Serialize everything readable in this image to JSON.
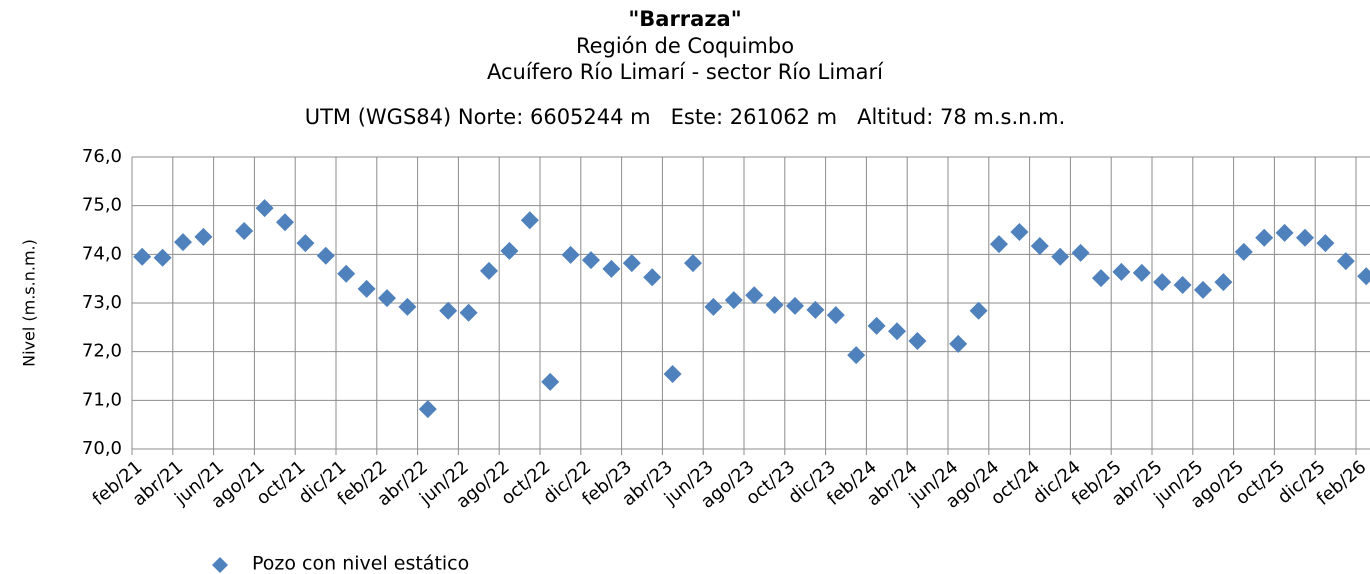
{
  "chart_data": {
    "type": "scatter",
    "title": "\"Barraza\"",
    "subtitle": [
      "Región de Coquimbo",
      "Acuífero Río Limarí - sector Río Limarí",
      "UTM (WGS84) Norte: 6605244 m   Este: 261062 m   Altitud: 78 m.s.n.m."
    ],
    "y_label": "Nivel (m.s.n.m.)",
    "xlim": [
      "2021-02",
      "2026-02"
    ],
    "ylim": [
      70,
      76
    ],
    "yticks": [
      {
        "value": 70,
        "label": "70,0"
      },
      {
        "value": 71,
        "label": "71,0"
      },
      {
        "value": 72,
        "label": "72,0"
      },
      {
        "value": 73,
        "label": "73,0"
      },
      {
        "value": 74,
        "label": "74,0"
      },
      {
        "value": 75,
        "label": "75,0"
      },
      {
        "value": 76,
        "label": "76,0"
      }
    ],
    "xticks": [
      {
        "value": "2021-02",
        "label": "feb/21"
      },
      {
        "value": "2021-04",
        "label": "abr/21"
      },
      {
        "value": "2021-06",
        "label": "jun/21"
      },
      {
        "value": "2021-08",
        "label": "ago/21"
      },
      {
        "value": "2021-10",
        "label": "oct/21"
      },
      {
        "value": "2021-12",
        "label": "dic/21"
      },
      {
        "value": "2022-02",
        "label": "feb/22"
      },
      {
        "value": "2022-04",
        "label": "abr/22"
      },
      {
        "value": "2022-06",
        "label": "jun/22"
      },
      {
        "value": "2022-08",
        "label": "ago/22"
      },
      {
        "value": "2022-10",
        "label": "oct/22"
      },
      {
        "value": "2022-12",
        "label": "dic/22"
      },
      {
        "value": "2023-02",
        "label": "feb/23"
      },
      {
        "value": "2023-04",
        "label": "abr/23"
      },
      {
        "value": "2023-06",
        "label": "jun/23"
      },
      {
        "value": "2023-08",
        "label": "ago/23"
      },
      {
        "value": "2023-10",
        "label": "oct/23"
      },
      {
        "value": "2023-12",
        "label": "dic/23"
      },
      {
        "value": "2024-02",
        "label": "feb/24"
      },
      {
        "value": "2024-04",
        "label": "abr/24"
      },
      {
        "value": "2024-06",
        "label": "jun/24"
      },
      {
        "value": "2024-08",
        "label": "ago/24"
      },
      {
        "value": "2024-10",
        "label": "oct/24"
      },
      {
        "value": "2024-12",
        "label": "dic/24"
      },
      {
        "value": "2025-02",
        "label": "feb/25"
      },
      {
        "value": "2025-04",
        "label": "abr/25"
      },
      {
        "value": "2025-06",
        "label": "jun/25"
      },
      {
        "value": "2025-08",
        "label": "ago/25"
      },
      {
        "value": "2025-10",
        "label": "oct/25"
      },
      {
        "value": "2025-12",
        "label": "dic/25"
      },
      {
        "value": "2026-02",
        "label": "feb/26"
      }
    ],
    "grid": true,
    "x": [
      "2021-02",
      "2021-03",
      "2021-04",
      "2021-05",
      "2021-07",
      "2021-08",
      "2021-09",
      "2021-10",
      "2021-11",
      "2021-12",
      "2022-01",
      "2022-02",
      "2022-03",
      "2022-04",
      "2022-05",
      "2022-06",
      "2022-07",
      "2022-08",
      "2022-09",
      "2022-10",
      "2022-11",
      "2022-12",
      "2023-01",
      "2023-02",
      "2023-03",
      "2023-04",
      "2023-05",
      "2023-06",
      "2023-07",
      "2023-08",
      "2023-09",
      "2023-10",
      "2023-11",
      "2023-12",
      "2024-01",
      "2024-02",
      "2024-03",
      "2024-04",
      "2024-06",
      "2024-07",
      "2024-08",
      "2024-09",
      "2024-10",
      "2024-11",
      "2024-12",
      "2025-01",
      "2025-02",
      "2025-03",
      "2025-04",
      "2025-05",
      "2025-06",
      "2025-07",
      "2025-08",
      "2025-09",
      "2025-10",
      "2025-11",
      "2025-12",
      "2026-01",
      "2026-02"
    ],
    "series": [
      {
        "name": "Pozo con nivel estático",
        "color": "#4f81bd",
        "values": [
          73.95,
          73.93,
          74.25,
          74.36,
          74.48,
          74.95,
          74.66,
          74.23,
          73.97,
          73.6,
          73.29,
          73.1,
          72.92,
          70.82,
          72.84,
          72.8,
          73.66,
          74.07,
          74.7,
          71.38,
          73.99,
          73.88,
          73.7,
          73.82,
          73.53,
          71.54,
          73.82,
          72.92,
          73.06,
          73.16,
          72.96,
          72.94,
          72.86,
          72.75,
          71.93,
          72.53,
          72.42,
          72.22,
          72.16,
          72.84,
          74.21,
          74.46,
          74.17,
          73.95,
          74.03,
          73.51,
          73.64,
          73.62,
          73.43,
          73.37,
          73.27,
          73.43,
          74.05,
          74.34,
          74.44,
          74.34,
          74.23,
          73.86,
          73.55
        ]
      }
    ]
  }
}
